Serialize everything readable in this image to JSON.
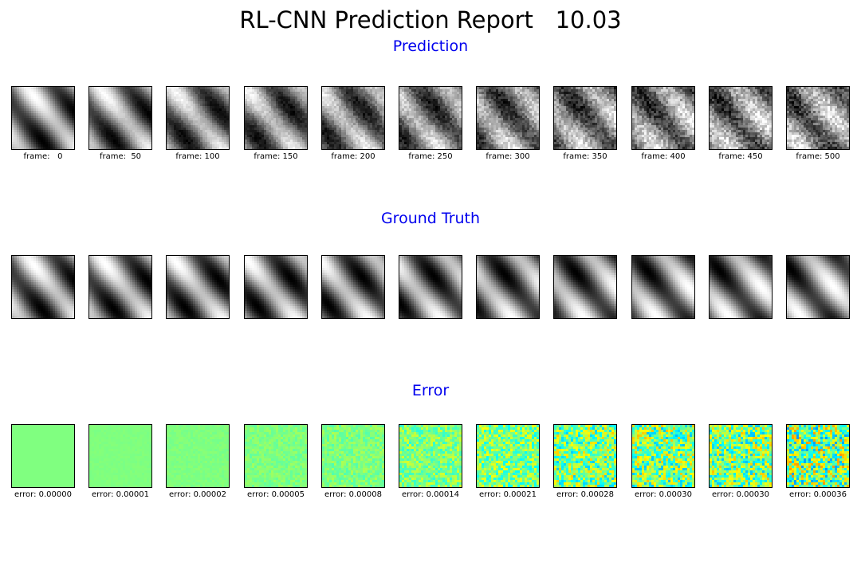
{
  "chart_data": {
    "type": "heatmap",
    "title": "RL-CNN Prediction Report   10.03",
    "colors": {
      "title": "#000000",
      "row_title": "#0000ee",
      "error_base": "#80ffb4"
    },
    "rows": [
      {
        "title": "Prediction",
        "colormap": "gray",
        "panels": [
          {
            "caption": "frame:   0",
            "noise": 0.0
          },
          {
            "caption": "frame:  50",
            "noise": 0.05
          },
          {
            "caption": "frame: 100",
            "noise": 0.1
          },
          {
            "caption": "frame: 150",
            "noise": 0.15
          },
          {
            "caption": "frame: 200",
            "noise": 0.2
          },
          {
            "caption": "frame: 250",
            "noise": 0.25
          },
          {
            "caption": "frame: 300",
            "noise": 0.3
          },
          {
            "caption": "frame: 350",
            "noise": 0.35
          },
          {
            "caption": "frame: 400",
            "noise": 0.38
          },
          {
            "caption": "frame: 450",
            "noise": 0.4
          },
          {
            "caption": "frame: 500",
            "noise": 0.42
          }
        ]
      },
      {
        "title": "Ground Truth",
        "colormap": "gray",
        "panels": [
          {
            "caption": ""
          },
          {
            "caption": ""
          },
          {
            "caption": ""
          },
          {
            "caption": ""
          },
          {
            "caption": ""
          },
          {
            "caption": ""
          },
          {
            "caption": ""
          },
          {
            "caption": ""
          },
          {
            "caption": ""
          },
          {
            "caption": ""
          },
          {
            "caption": ""
          }
        ]
      },
      {
        "title": "Error",
        "colormap": "jet",
        "panels": [
          {
            "caption": "error: 0.00000",
            "value": 0.0
          },
          {
            "caption": "error: 0.00001",
            "value": 1e-05
          },
          {
            "caption": "error: 0.00002",
            "value": 2e-05
          },
          {
            "caption": "error: 0.00005",
            "value": 5e-05
          },
          {
            "caption": "error: 0.00008",
            "value": 8e-05
          },
          {
            "caption": "error: 0.00014",
            "value": 0.00014
          },
          {
            "caption": "error: 0.00021",
            "value": 0.00021
          },
          {
            "caption": "error: 0.00028",
            "value": 0.00028
          },
          {
            "caption": "error: 0.00030",
            "value": 0.0003
          },
          {
            "caption": "error: 0.00030",
            "value": 0.0003
          },
          {
            "caption": "error: 0.00036",
            "value": 0.00036
          }
        ]
      }
    ]
  }
}
